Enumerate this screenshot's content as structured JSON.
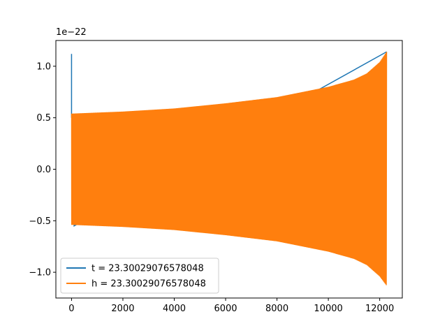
{
  "chart_data": {
    "type": "line",
    "title": "",
    "xlabel": "",
    "ylabel": "",
    "offset_text": "1e−22",
    "xlim": [
      -610,
      12880
    ],
    "ylim": [
      -1.25,
      1.25
    ],
    "xticks": [
      0,
      2000,
      4000,
      6000,
      8000,
      10000,
      12000
    ],
    "xtick_labels": [
      "0",
      "2000",
      "4000",
      "6000",
      "8000",
      "10000",
      "12000"
    ],
    "yticks": [
      -1.0,
      -0.5,
      0.0,
      0.5,
      1.0
    ],
    "ytick_labels": [
      "−1.0",
      "−0.5",
      "0.0",
      "0.5",
      "1.0"
    ],
    "grid": false,
    "legend_position": "lower-left",
    "series": [
      {
        "name": "t = 23.30029076578048",
        "color": "#1f77b4",
        "description_points": {
          "x": [
            0,
            0,
            20,
            100,
            12270
          ],
          "y": [
            1.12,
            0.5,
            0.53,
            -0.55,
            1.14
          ]
        }
      },
      {
        "name": "h = 23.30029076578048",
        "color": "#ff7f0e",
        "envelope": {
          "x": [
            0,
            2000,
            4000,
            6000,
            8000,
            10000,
            11000,
            11500,
            12000,
            12270
          ],
          "upper": [
            0.54,
            0.56,
            0.59,
            0.64,
            0.7,
            0.8,
            0.87,
            0.93,
            1.04,
            1.14
          ],
          "lower": [
            -0.54,
            -0.56,
            -0.59,
            -0.64,
            -0.7,
            -0.8,
            -0.87,
            -0.93,
            -1.04,
            -1.13
          ]
        },
        "x_start": 0,
        "x_end": 12270,
        "cycles": 560
      }
    ]
  }
}
